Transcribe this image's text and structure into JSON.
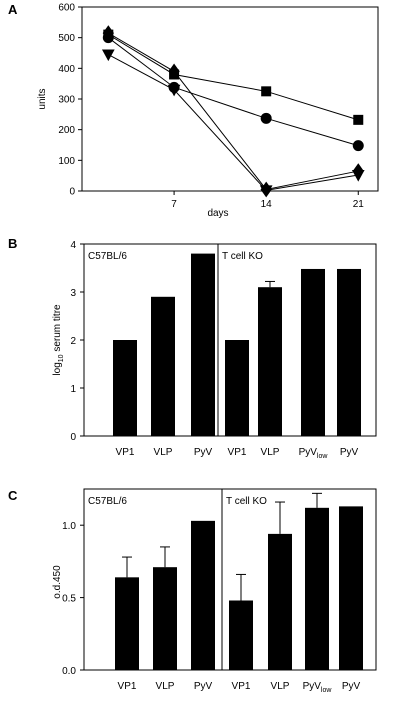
{
  "chart_data": [
    {
      "panel": "A",
      "type": "line",
      "xlabel": "days",
      "ylabel": "units",
      "ylim": [
        0,
        600
      ],
      "yticks": [
        "0",
        "100",
        "200",
        "300",
        "400",
        "500",
        "600"
      ],
      "xticks": [
        "7",
        "14",
        "21"
      ],
      "grid": false,
      "series": [
        {
          "marker": "square",
          "x": [
            2,
            7,
            14,
            21
          ],
          "values": [
            510,
            380,
            325,
            232
          ]
        },
        {
          "marker": "circle",
          "x": [
            2,
            7,
            14,
            21
          ],
          "values": [
            500,
            338,
            237,
            148
          ]
        },
        {
          "marker": "diamond",
          "x": [
            2,
            7,
            14,
            21
          ],
          "values": [
            515,
            390,
            5,
            65
          ]
        },
        {
          "marker": "triangle-down",
          "x": [
            2,
            7,
            14,
            21
          ],
          "values": [
            445,
            330,
            2,
            52
          ]
        }
      ]
    },
    {
      "panel": "B",
      "type": "bar",
      "ylabel_main": "log",
      "ylabel_sub": "10",
      "ylabel_rest": " serum titre",
      "ylim": [
        0,
        4
      ],
      "yticks": [
        "0",
        "1",
        "2",
        "3",
        "4"
      ],
      "groups": [
        {
          "label": "C57BL/6",
          "categories": [
            {
              "main": "VP1",
              "sub": ""
            },
            {
              "main": "VLP",
              "sub": ""
            },
            {
              "main": "PyV",
              "sub": ""
            }
          ],
          "values": [
            2.0,
            2.9,
            3.8
          ],
          "errors": [
            0,
            0,
            0
          ]
        },
        {
          "label": "T cell KO",
          "categories": [
            {
              "main": "VP1",
              "sub": ""
            },
            {
              "main": "VLP",
              "sub": ""
            },
            {
              "main": "PyV",
              "sub": "low"
            },
            {
              "main": "PyV",
              "sub": ""
            }
          ],
          "values": [
            2.0,
            3.1,
            3.48,
            3.48
          ],
          "errors": [
            0,
            0.12,
            0,
            0
          ]
        }
      ]
    },
    {
      "panel": "C",
      "type": "bar",
      "ylabel_main": "o.d.450",
      "ylabel_sub": "",
      "ylabel_rest": "",
      "ylim": [
        0,
        1.25
      ],
      "yticks": [
        "0.0",
        "0.5",
        "1.0"
      ],
      "ytick_values": [
        0,
        0.5,
        1.0
      ],
      "groups": [
        {
          "label": "C57BL/6",
          "categories": [
            {
              "main": "VP1",
              "sub": ""
            },
            {
              "main": "VLP",
              "sub": ""
            },
            {
              "main": "PyV",
              "sub": ""
            }
          ],
          "values": [
            0.64,
            0.71,
            1.03
          ],
          "errors": [
            0.14,
            0.14,
            0
          ]
        },
        {
          "label": "T cell KO",
          "categories": [
            {
              "main": "VP1",
              "sub": ""
            },
            {
              "main": "VLP",
              "sub": ""
            },
            {
              "main": "PyV",
              "sub": "low"
            },
            {
              "main": "PyV",
              "sub": ""
            }
          ],
          "values": [
            0.48,
            0.94,
            1.12,
            1.13
          ],
          "errors": [
            0.18,
            0.22,
            0.1,
            0
          ]
        }
      ]
    }
  ]
}
